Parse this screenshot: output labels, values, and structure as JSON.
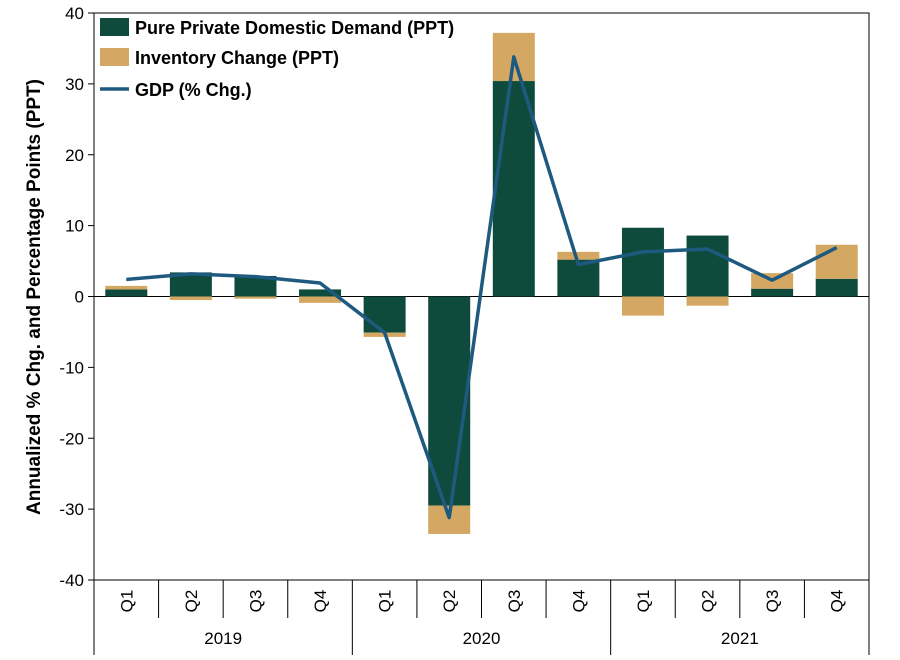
{
  "chart_data": {
    "type": "bar",
    "stacked": true,
    "title": "",
    "ylabel": "Annualized % Chg. and Percentage Points (PPT)",
    "xlabel": "",
    "ylim": [
      -40,
      40
    ],
    "yticks": [
      -40,
      -30,
      -20,
      -10,
      0,
      10,
      20,
      30,
      40
    ],
    "categories": [
      "Q1",
      "Q2",
      "Q3",
      "Q4",
      "Q1",
      "Q2",
      "Q3",
      "Q4",
      "Q1",
      "Q2",
      "Q3",
      "Q4"
    ],
    "years": [
      {
        "label": "2019",
        "start": 0,
        "count": 4
      },
      {
        "label": "2020",
        "start": 4,
        "count": 4
      },
      {
        "label": "2021",
        "start": 8,
        "count": 4
      }
    ],
    "series": [
      {
        "name": "Pure Private Domestic Demand (PPT)",
        "kind": "bar",
        "color": "#0f4b3c",
        "values": [
          1.0,
          3.4,
          2.9,
          1.0,
          -5.1,
          -29.5,
          30.4,
          5.2,
          9.7,
          8.6,
          1.1,
          2.5
        ]
      },
      {
        "name": "Inventory Change (PPT)",
        "kind": "bar",
        "color": "#d4a862",
        "values": [
          0.5,
          -0.5,
          -0.3,
          -0.9,
          -0.6,
          -4.0,
          6.8,
          1.1,
          -2.7,
          -1.3,
          2.2,
          4.8
        ]
      },
      {
        "name": "GDP (% Chg.)",
        "kind": "line",
        "color": "#1e5a80",
        "values": [
          2.4,
          3.2,
          2.8,
          1.9,
          -5.1,
          -31.2,
          33.8,
          4.5,
          6.3,
          6.7,
          2.3,
          6.9
        ]
      }
    ],
    "legend_position": "top-left"
  }
}
